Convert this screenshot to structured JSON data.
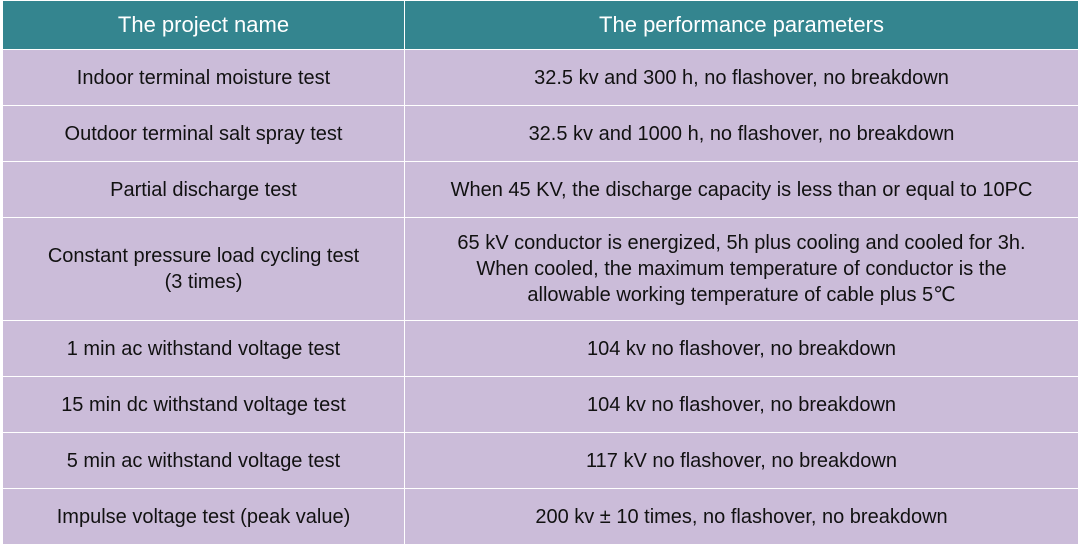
{
  "table": {
    "headers": [
      "The project name",
      "The performance parameters"
    ],
    "rows": [
      {
        "name": [
          "Indoor terminal moisture test"
        ],
        "params": [
          "32.5 kv and 300 h, no flashover, no breakdown"
        ]
      },
      {
        "name": [
          "Outdoor terminal salt spray test"
        ],
        "params": [
          "32.5 kv and 1000 h, no flashover, no breakdown"
        ]
      },
      {
        "name": [
          "Partial discharge test"
        ],
        "params": [
          "When 45 KV, the discharge capacity is less than or equal to 10PC"
        ]
      },
      {
        "name": [
          "Constant pressure load cycling test",
          "(3 times)"
        ],
        "params": [
          "65 kV conductor is energized, 5h plus cooling and cooled for 3h.",
          "When cooled, the maximum temperature of conductor is the",
          "allowable working temperature of cable plus 5℃"
        ]
      },
      {
        "name": [
          "1 min ac withstand voltage test"
        ],
        "params": [
          "104 kv no flashover, no breakdown"
        ]
      },
      {
        "name": [
          "15 min dc withstand voltage test"
        ],
        "params": [
          "104 kv no flashover, no breakdown"
        ]
      },
      {
        "name": [
          "5 min ac withstand voltage test"
        ],
        "params": [
          "117 kV no flashover, no breakdown"
        ]
      },
      {
        "name": [
          "Impulse voltage test (peak value)"
        ],
        "params": [
          "200 kv ± 10 times, no flashover, no breakdown"
        ]
      }
    ]
  }
}
